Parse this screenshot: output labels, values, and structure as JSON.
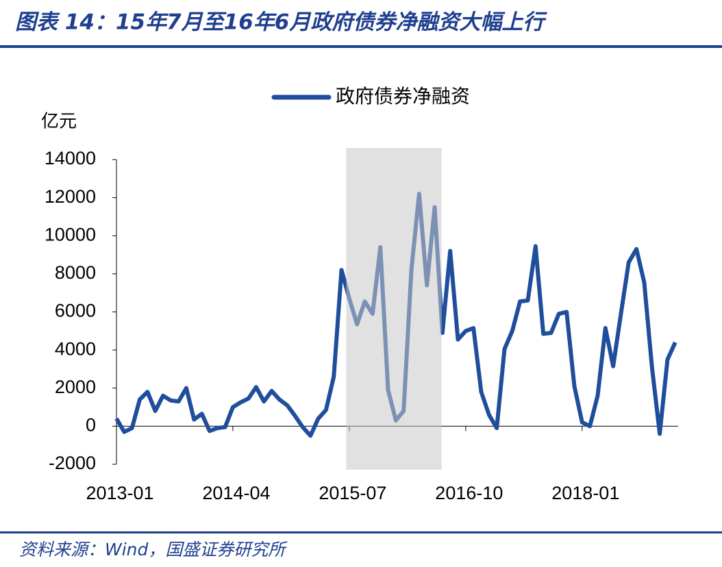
{
  "chart_data": {
    "type": "line",
    "title": "图表 14：15年7月至16年6月政府债券净融资大幅上行",
    "y_label": "亿元",
    "source": "资料来源：Wind，国盛证券研究所",
    "categories": [
      "2013-01",
      null,
      null,
      null,
      null,
      null,
      null,
      null,
      null,
      null,
      null,
      null,
      null,
      null,
      null,
      "2014-04",
      null,
      null,
      null,
      null,
      null,
      null,
      null,
      null,
      null,
      null,
      null,
      null,
      null,
      null,
      "2015-07",
      null,
      null,
      null,
      null,
      null,
      null,
      null,
      null,
      null,
      null,
      null,
      null,
      null,
      null,
      "2016-10",
      null,
      null,
      null,
      null,
      null,
      null,
      null,
      null,
      null,
      null,
      null,
      null,
      null,
      null,
      "2018-01",
      null,
      null,
      null,
      null,
      null,
      null,
      null,
      null,
      null,
      null,
      null,
      null
    ],
    "series": [
      {
        "name": "政府债券净融资",
        "color": "#1f4e9c",
        "values": [
          400,
          -300,
          -100,
          1400,
          1800,
          800,
          1600,
          1350,
          1300,
          2000,
          350,
          650,
          -250,
          -100,
          -50,
          1000,
          1250,
          1450,
          2050,
          1300,
          1850,
          1400,
          1100,
          550,
          -50,
          -500,
          400,
          850,
          2600,
          8200,
          6700,
          5350,
          6550,
          5900,
          9400,
          1900,
          300,
          800,
          8200,
          12200,
          7400,
          11500,
          4900,
          9200,
          4550,
          5000,
          5150,
          1800,
          600,
          -100,
          4050,
          5000,
          6550,
          6600,
          9450,
          4850,
          4900,
          5900,
          6000,
          2100,
          200,
          0,
          1600,
          5150,
          3150,
          5900,
          8600,
          9300,
          7550,
          3100,
          -400,
          3500,
          4400
        ]
      }
    ],
    "ylim": [
      -2000,
      14000
    ],
    "yticks": [
      -2000,
      0,
      2000,
      4000,
      6000,
      8000,
      10000,
      12000,
      14000
    ]
  }
}
